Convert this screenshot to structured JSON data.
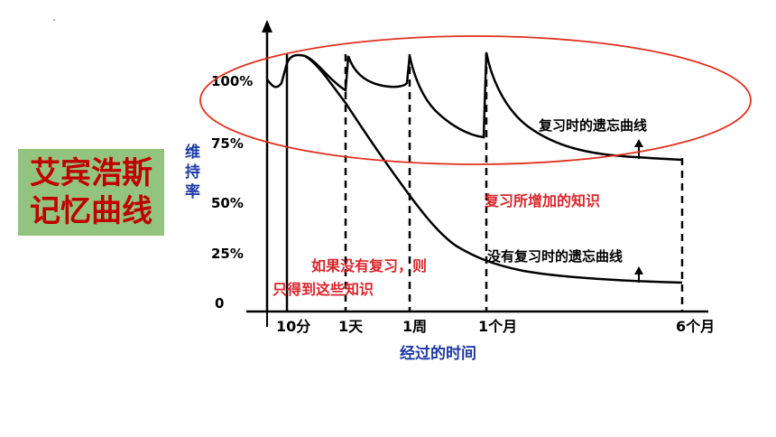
{
  "title_box": {
    "line1": "艾宾浩斯",
    "line2": "记忆曲线"
  },
  "chart_data": {
    "type": "line",
    "ylabel": "维持率",
    "xlabel": "经过的时间",
    "y_ticks": [
      "100%",
      "75%",
      "50%",
      "25%",
      "0"
    ],
    "x_ticks": [
      "10分",
      "1天",
      "1周",
      "1个月",
      "6个月"
    ],
    "series": [
      {
        "name": "复习时的遗忘曲线",
        "color": "#000000",
        "points": [
          [
            "0",
            100
          ],
          [
            "10分",
            107
          ],
          [
            "10分",
            100
          ],
          [
            "1天",
            87
          ],
          [
            "1天",
            107
          ],
          [
            "1天",
            96
          ],
          [
            "1周",
            92
          ],
          [
            "1周",
            107
          ],
          [
            "1周",
            83
          ],
          [
            "1个月",
            73
          ],
          [
            "1个月",
            107
          ],
          [
            "1个月",
            82
          ],
          [
            "6个月",
            64
          ]
        ]
      },
      {
        "name": "没有复习时的遗忘曲线",
        "color": "#000000",
        "points": [
          [
            "10分",
            107
          ],
          [
            "1天",
            87
          ],
          [
            "1周",
            36
          ],
          [
            "1个月",
            18
          ],
          [
            "6个月",
            10
          ]
        ]
      }
    ],
    "annotations": [
      {
        "text": "复习所增加的知识",
        "color": "#d9262b"
      },
      {
        "text": "如果没有复习，则",
        "color": "#d9262b"
      },
      {
        "text": "只得到这些知识",
        "color": "#d9262b"
      }
    ],
    "highlight_color": "#e0301e",
    "axis_color": "#000000",
    "ylabel_color": "#1f3aa6",
    "xlabel_color": "#1f3aa6"
  }
}
